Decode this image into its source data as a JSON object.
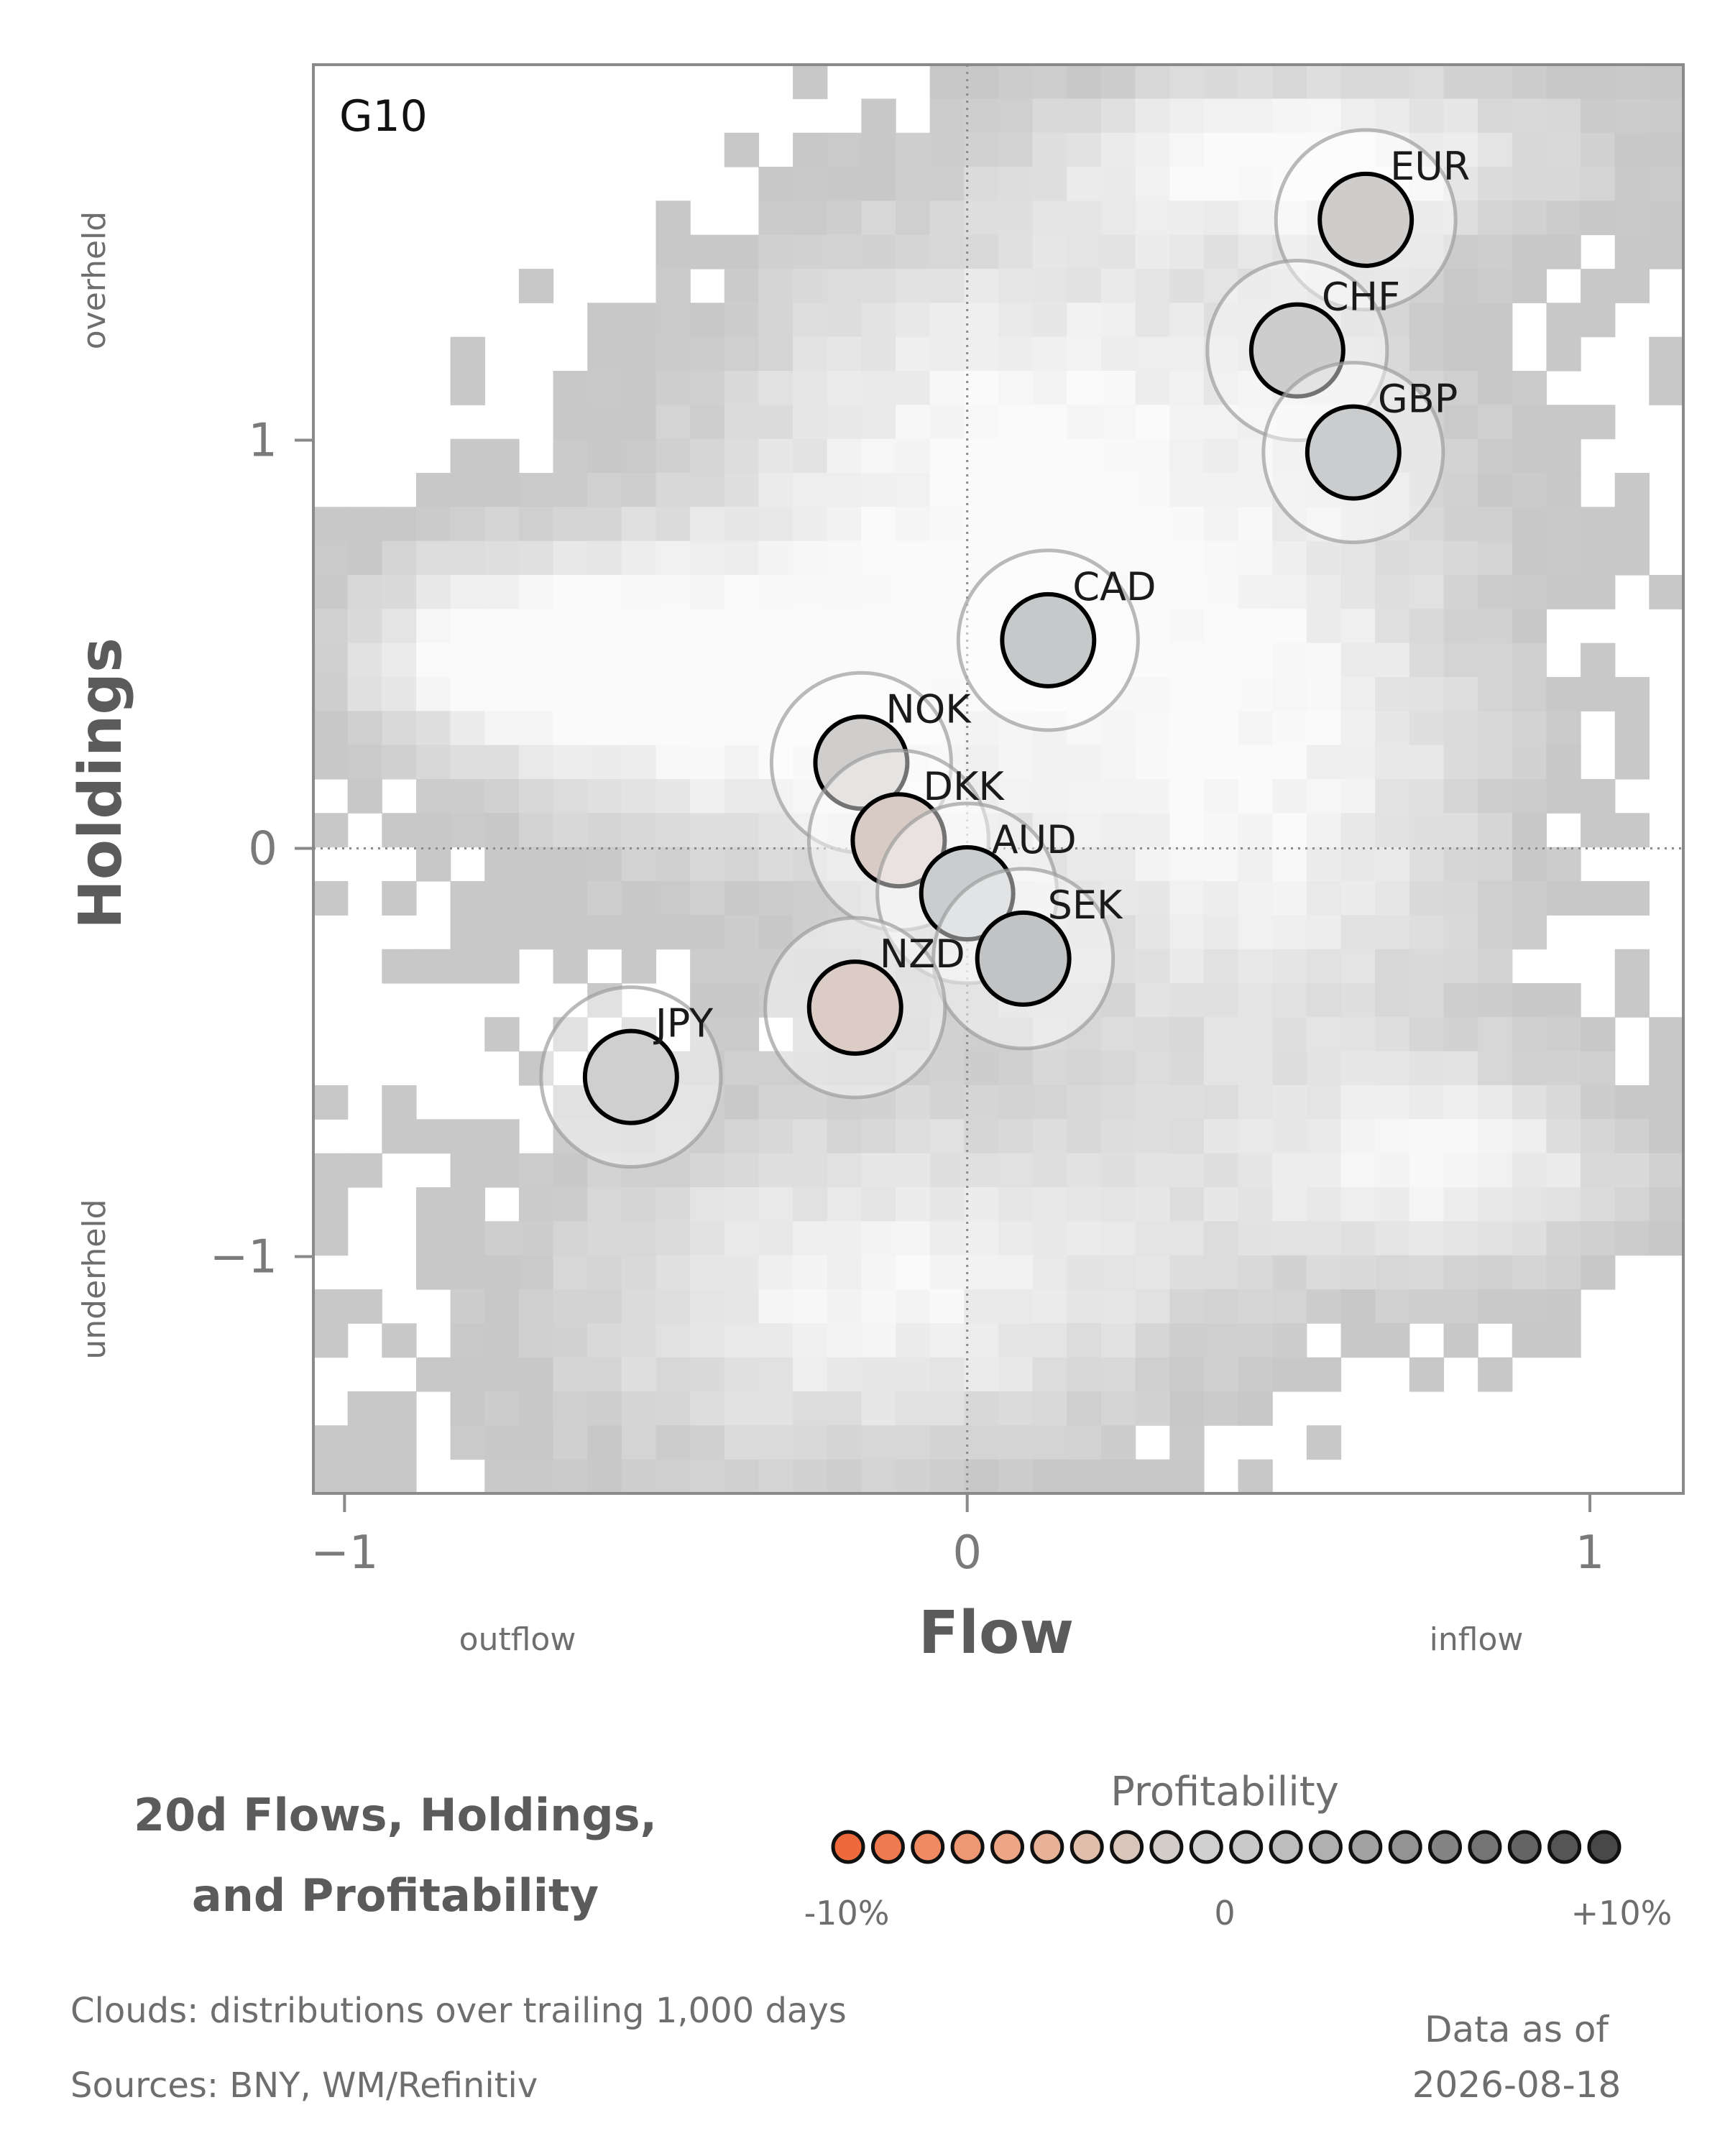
{
  "chart_data": {
    "type": "scatter",
    "panel_label": "G10",
    "xlabel": "Flow",
    "ylabel": "Holdings",
    "x_left_label": "outflow",
    "x_right_label": "inflow",
    "y_top_label": "overheld",
    "y_bottom_label": "underheld",
    "xlim": [
      -1.05,
      1.15
    ],
    "ylim": [
      -1.58,
      1.92
    ],
    "x_ticks": [
      {
        "value": -1,
        "label": "−1"
      },
      {
        "value": 0,
        "label": "0"
      },
      {
        "value": 1,
        "label": "1"
      }
    ],
    "y_ticks": [
      {
        "value": 1,
        "label": "1"
      },
      {
        "value": 0,
        "label": "0"
      },
      {
        "value": -1,
        "label": "−1"
      }
    ],
    "reference_lines": {
      "x": 0,
      "y": 0
    },
    "grid": false,
    "background": "gray heatmap clouds",
    "points": [
      {
        "name": "EUR",
        "x": 0.64,
        "y": 1.54,
        "color": "#cfcdcb"
      },
      {
        "name": "CHF",
        "x": 0.53,
        "y": 1.22,
        "color": "#cdcdcd"
      },
      {
        "name": "GBP",
        "x": 0.62,
        "y": 0.97,
        "color": "#cacccd"
      },
      {
        "name": "CAD",
        "x": 0.13,
        "y": 0.51,
        "color": "#c6c9ca"
      },
      {
        "name": "NOK",
        "x": -0.17,
        "y": 0.21,
        "color": "#d0cecd"
      },
      {
        "name": "DKK",
        "x": -0.11,
        "y": 0.02,
        "color": "#d8cbc6"
      },
      {
        "name": "AUD",
        "x": 0.0,
        "y": -0.11,
        "color": "#c9cdcf"
      },
      {
        "name": "SEK",
        "x": 0.09,
        "y": -0.27,
        "color": "#c2c3c4"
      },
      {
        "name": "NZD",
        "x": -0.18,
        "y": -0.39,
        "color": "#dbccc6"
      },
      {
        "name": "JPY",
        "x": -0.54,
        "y": -0.56,
        "color": "#cfcfcf"
      }
    ],
    "density_clusters": [
      {
        "cx": 0.05,
        "cy": 1.05,
        "sx": 0.38,
        "sy": 0.42
      },
      {
        "cx": -0.1,
        "cy": -1.1,
        "sx": 0.38,
        "sy": 0.32
      },
      {
        "cx": -0.35,
        "cy": 0.35,
        "sx": 0.35,
        "sy": 0.3
      },
      {
        "cx": 0.5,
        "cy": 0.1,
        "sx": 0.3,
        "sy": 0.55
      },
      {
        "cx": 0.8,
        "cy": -0.8,
        "sx": 0.25,
        "sy": 0.2
      },
      {
        "cx": 0.55,
        "cy": 1.7,
        "sx": 0.3,
        "sy": 0.15
      },
      {
        "cx": -0.75,
        "cy": 0.5,
        "sx": 0.22,
        "sy": 0.18
      }
    ],
    "legend": {
      "title": "Profitability",
      "min_label": "-10%",
      "mid_label": "0",
      "max_label": "+10%",
      "colors": [
        "#ee6a3c",
        "#ef7a4f",
        "#ef8a62",
        "#ee9873",
        "#eca685",
        "#e8b299",
        "#e1bdab",
        "#d9c6bb",
        "#d3cdc9",
        "#d0d0d0",
        "#c9c9c9",
        "#bdbdbd",
        "#b0b0b0",
        "#a2a2a2",
        "#939393",
        "#848484",
        "#747474",
        "#646464",
        "#555555",
        "#484848"
      ]
    }
  },
  "title_line1": "20d Flows, Holdings,",
  "title_line2": "and Profitability",
  "footnote_clouds": "Clouds:  distributions over trailing 1,000 days",
  "footnote_sources": "Sources:  BNY, WM/Refinitiv",
  "data_as_of_label": "Data as of",
  "data_as_of_date": "2026-08-18"
}
